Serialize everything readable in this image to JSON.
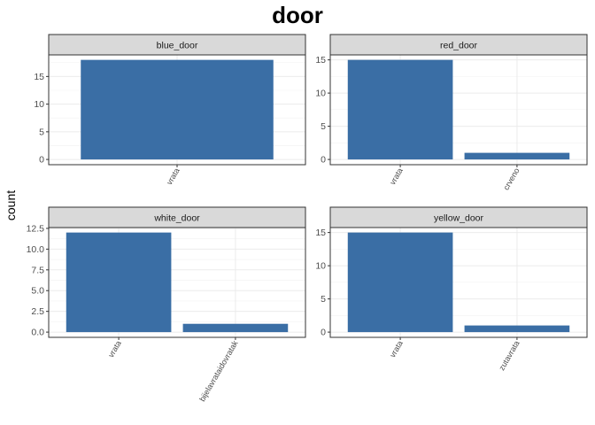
{
  "chart_data": {
    "type": "bar",
    "title": "door",
    "ylabel": "count",
    "xlabel": "",
    "bar_color": "#3A6EA5",
    "grid": true,
    "panels": [
      {
        "name": "blue_door",
        "categories": [
          "vrata"
        ],
        "values": [
          18
        ],
        "ylim": [
          0,
          18.9
        ],
        "yticks": [
          0,
          5,
          10,
          15
        ],
        "ytick_labels": [
          "0",
          "5",
          "10",
          "15"
        ]
      },
      {
        "name": "red_door",
        "categories": [
          "vrata",
          "crveno"
        ],
        "values": [
          15,
          1
        ],
        "ylim": [
          0,
          15.75
        ],
        "yticks": [
          0,
          5,
          10,
          15
        ],
        "ytick_labels": [
          "0",
          "5",
          "10",
          "15"
        ]
      },
      {
        "name": "white_door",
        "categories": [
          "vrata",
          "bijelavrataidovratak"
        ],
        "values": [
          12,
          1
        ],
        "ylim": [
          0,
          12.6
        ],
        "yticks": [
          0,
          2.5,
          5,
          7.5,
          10,
          12.5
        ],
        "ytick_labels": [
          "0.0",
          "2.5",
          "5.0",
          "7.5",
          "10.0",
          "12.5"
        ]
      },
      {
        "name": "yellow_door",
        "categories": [
          "vrata",
          "zutavrata"
        ],
        "values": [
          15,
          1
        ],
        "ylim": [
          0,
          15.75
        ],
        "yticks": [
          0,
          5,
          10,
          15
        ],
        "ytick_labels": [
          "0",
          "5",
          "10",
          "15"
        ]
      }
    ]
  }
}
